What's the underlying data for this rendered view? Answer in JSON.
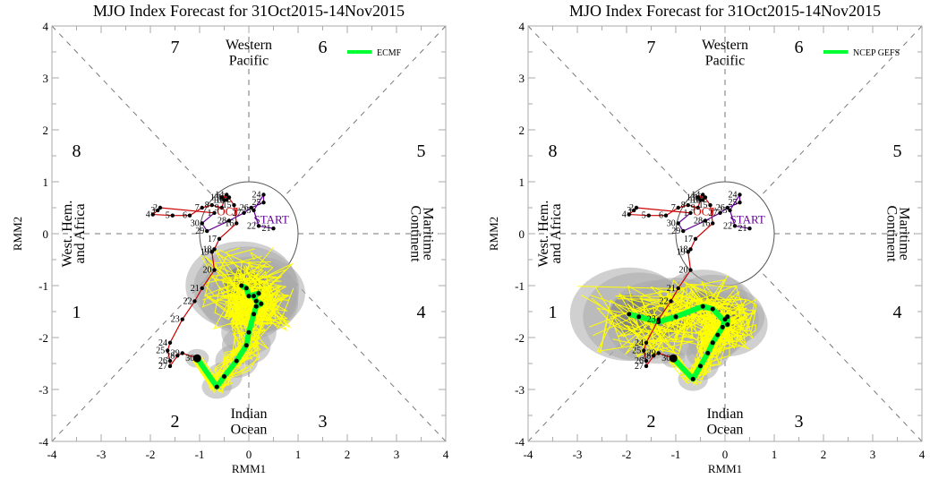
{
  "chart_data": [
    {
      "type": "scatter",
      "title": "MJO Index Forecast for 31Oct2015-14Nov2015",
      "xlabel": "RMM1",
      "ylabel": "RMM2",
      "xlim": [
        -4,
        4
      ],
      "ylim": [
        -4,
        4
      ],
      "xticks": [
        "-4",
        "-3",
        "-2",
        "-1",
        "0",
        "1",
        "2",
        "3",
        "4"
      ],
      "yticks": [
        "-4",
        "-3",
        "-2",
        "-1",
        "0",
        "1",
        "2",
        "3",
        "4"
      ],
      "legend": {
        "label": "ECMF",
        "color": "#00ff33",
        "position": "top-right"
      },
      "phase_labels": [
        "1",
        "2",
        "3",
        "4",
        "5",
        "6",
        "7",
        "8"
      ],
      "region_labels": {
        "top": [
          "Western",
          "Pacific"
        ],
        "bottom": [
          "Indian",
          "Ocean"
        ],
        "left": [
          "West. Hem.",
          "and Africa"
        ],
        "right": [
          "Maritime",
          "Continent"
        ]
      },
      "observed": {
        "sept_color": "#660099",
        "oct_color": "#cc0000",
        "start_label": "START",
        "month_label": "OCT",
        "sept_points": [
          {
            "d": "21",
            "x": 0.5,
            "y": 0.1
          },
          {
            "d": "22",
            "x": 0.2,
            "y": 0.15
          },
          {
            "d": "23",
            "x": 0.1,
            "y": 0.45
          },
          {
            "d": "24",
            "x": 0.3,
            "y": 0.75
          },
          {
            "d": "25",
            "x": 0.3,
            "y": 0.6
          },
          {
            "d": "26",
            "x": 0.05,
            "y": 0.5
          },
          {
            "d": "27",
            "x": -0.1,
            "y": 0.4
          },
          {
            "d": "28",
            "x": -0.4,
            "y": 0.25
          },
          {
            "d": "29",
            "x": -0.85,
            "y": 0.05
          },
          {
            "d": "30",
            "x": -0.95,
            "y": 0.2
          }
        ],
        "oct_points": [
          {
            "d": "1",
            "x": -0.7,
            "y": 0.4
          },
          {
            "d": "2",
            "x": -1.8,
            "y": 0.5
          },
          {
            "d": "3",
            "x": -1.85,
            "y": 0.45
          },
          {
            "d": "4",
            "x": -1.95,
            "y": 0.37
          },
          {
            "d": "5",
            "x": -1.55,
            "y": 0.35
          },
          {
            "d": "6",
            "x": -1.2,
            "y": 0.35
          },
          {
            "d": "7",
            "x": -0.95,
            "y": 0.5
          },
          {
            "d": "8",
            "x": -0.75,
            "y": 0.55
          },
          {
            "d": "9",
            "x": -0.55,
            "y": 0.5
          },
          {
            "d": "10",
            "x": -0.5,
            "y": 0.65
          },
          {
            "d": "11",
            "x": -0.45,
            "y": 0.65
          },
          {
            "d": "12",
            "x": -0.4,
            "y": 0.7
          },
          {
            "d": "13",
            "x": -0.55,
            "y": 0.7
          },
          {
            "d": "14",
            "x": -0.45,
            "y": 0.75
          },
          {
            "d": "15",
            "x": -0.3,
            "y": 0.55
          },
          {
            "d": "16",
            "x": -0.25,
            "y": 0.2
          },
          {
            "d": "17",
            "x": -0.6,
            "y": -0.1
          },
          {
            "d": "18",
            "x": -0.7,
            "y": -0.3
          },
          {
            "d": "19",
            "x": -0.75,
            "y": -0.35
          },
          {
            "d": "20",
            "x": -0.7,
            "y": -0.7
          },
          {
            "d": "21",
            "x": -0.95,
            "y": -1.05
          },
          {
            "d": "22",
            "x": -1.1,
            "y": -1.3
          },
          {
            "d": "23",
            "x": -1.35,
            "y": -1.65
          },
          {
            "d": "24",
            "x": -1.6,
            "y": -2.1
          },
          {
            "d": "25",
            "x": -1.65,
            "y": -2.25
          },
          {
            "d": "26",
            "x": -1.6,
            "y": -2.45
          },
          {
            "d": "27",
            "x": -1.6,
            "y": -2.55
          },
          {
            "d": "28",
            "x": -1.45,
            "y": -2.35
          },
          {
            "d": "29",
            "x": -1.35,
            "y": -2.3
          },
          {
            "d": "30",
            "x": -1.05,
            "y": -2.4
          }
        ]
      },
      "forecast_mean": [
        {
          "x": -1.05,
          "y": -2.4
        },
        {
          "x": -0.65,
          "y": -2.95
        },
        {
          "x": -0.5,
          "y": -2.75
        },
        {
          "x": -0.25,
          "y": -2.45
        },
        {
          "x": -0.05,
          "y": -2.15
        },
        {
          "x": 0.0,
          "y": -1.9
        },
        {
          "x": 0.1,
          "y": -1.55
        },
        {
          "x": 0.15,
          "y": -1.4
        },
        {
          "x": 0.25,
          "y": -1.35
        },
        {
          "x": 0.15,
          "y": -1.3
        },
        {
          "x": 0.1,
          "y": -1.2
        },
        {
          "x": 0.2,
          "y": -1.15
        },
        {
          "x": 0.0,
          "y": -1.2
        },
        {
          "x": -0.05,
          "y": -1.05
        },
        {
          "x": -0.15,
          "y": -1.0
        }
      ]
    },
    {
      "type": "scatter",
      "title": "MJO Index Forecast for 31Oct2015-14Nov2015",
      "xlabel": "RMM1",
      "ylabel": "RMM2",
      "xlim": [
        -4,
        4
      ],
      "ylim": [
        -4,
        4
      ],
      "xticks": [
        "-4",
        "-3",
        "-2",
        "-1",
        "0",
        "1",
        "2",
        "3",
        "4"
      ],
      "yticks": [
        "-4",
        "-3",
        "-2",
        "-1",
        "0",
        "1",
        "2",
        "3",
        "4"
      ],
      "legend": {
        "label": "NCEP GEFS",
        "color": "#00ff33",
        "position": "top-right"
      },
      "phase_labels": [
        "1",
        "2",
        "3",
        "4",
        "5",
        "6",
        "7",
        "8"
      ],
      "region_labels": {
        "top": [
          "Western",
          "Pacific"
        ],
        "bottom": [
          "Indian",
          "Ocean"
        ],
        "left": [
          "West. Hem.",
          "and Africa"
        ],
        "right": [
          "Maritime",
          "Continent"
        ]
      },
      "forecast_mean": [
        {
          "x": -1.05,
          "y": -2.4
        },
        {
          "x": -0.65,
          "y": -2.8
        },
        {
          "x": -0.5,
          "y": -2.55
        },
        {
          "x": -0.35,
          "y": -2.3
        },
        {
          "x": -0.25,
          "y": -2.1
        },
        {
          "x": -0.15,
          "y": -1.95
        },
        {
          "x": -0.05,
          "y": -1.8
        },
        {
          "x": 0.0,
          "y": -1.65
        },
        {
          "x": 0.05,
          "y": -1.6
        },
        {
          "x": 0.05,
          "y": -1.75
        },
        {
          "x": -0.25,
          "y": -1.45
        },
        {
          "x": -0.45,
          "y": -1.4
        },
        {
          "x": -1.0,
          "y": -1.6
        },
        {
          "x": -1.35,
          "y": -1.7
        },
        {
          "x": -1.75,
          "y": -1.6
        },
        {
          "x": -1.95,
          "y": -1.55
        }
      ]
    }
  ]
}
